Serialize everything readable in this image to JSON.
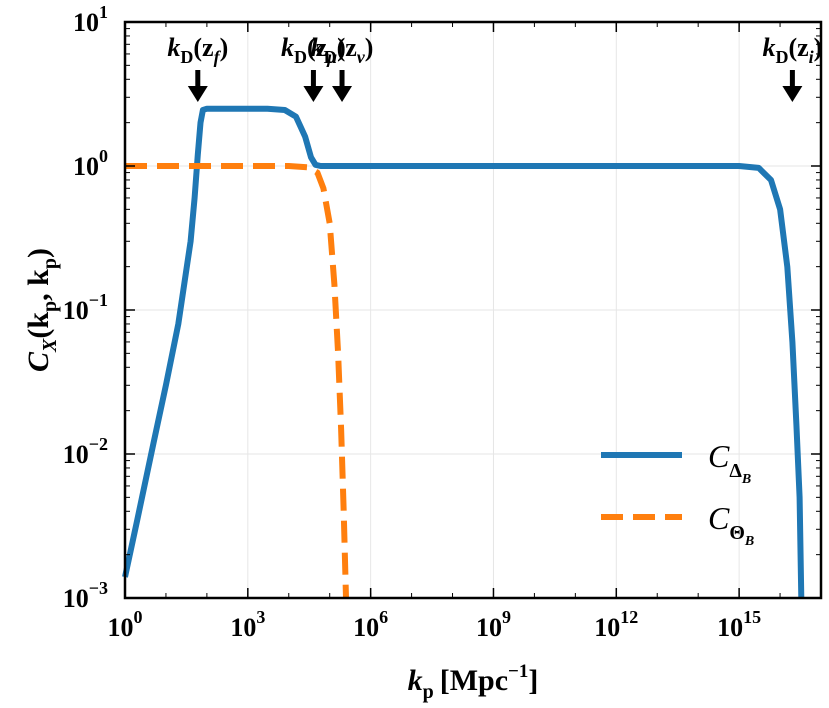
{
  "chart_data": {
    "type": "line",
    "xscale": "log",
    "yscale": "log",
    "xlim": [
      1,
      1e+17
    ],
    "ylim": [
      0.001,
      10
    ],
    "grid": true,
    "legend_position": "lower-right",
    "xlabel": {
      "main": "k",
      "sub": "p",
      "unit": "[Mpc",
      "unit_sup": "−1",
      "unit_close": "]"
    },
    "ylabel": {
      "main": "C",
      "sub": "X",
      "args": "(k",
      "args_sub1": "p",
      "comma": ", k",
      "args_sub2": "p",
      "close": ")"
    },
    "x_ticks": [
      {
        "value": 1,
        "base": "10",
        "exp": "0"
      },
      {
        "value": 1000,
        "base": "10",
        "exp": "3"
      },
      {
        "value": 1000000,
        "base": "10",
        "exp": "6"
      },
      {
        "value": 1000000000.0,
        "base": "10",
        "exp": "9"
      },
      {
        "value": 1000000000000.0,
        "base": "10",
        "exp": "12"
      },
      {
        "value": 1000000000000000.0,
        "base": "10",
        "exp": "15"
      }
    ],
    "y_ticks": [
      {
        "value": 0.001,
        "base": "10",
        "exp": "−3"
      },
      {
        "value": 0.01,
        "base": "10",
        "exp": "−2"
      },
      {
        "value": 0.1,
        "base": "10",
        "exp": "−1"
      },
      {
        "value": 1,
        "base": "10",
        "exp": "0"
      },
      {
        "value": 10,
        "base": "10",
        "exp": "1"
      }
    ],
    "annotations": [
      {
        "k": "k",
        "D": "D",
        "z": "(z",
        "sub": "f",
        "close": ")",
        "x": 60
      },
      {
        "k": "k",
        "D": "D",
        "z": "(z",
        "sub": "μ",
        "close": ")",
        "x": 40000
      },
      {
        "k": "k",
        "D": "D",
        "z": "(z",
        "sub": "ν",
        "close": ")",
        "x": 200000
      },
      {
        "k": "k",
        "D": "D",
        "z": "(z",
        "sub": "i",
        "close": ")",
        "x": 2e+16
      }
    ],
    "series": [
      {
        "name": "C_ΔB",
        "legend_main": "C",
        "legend_sub": "Δ",
        "legend_subsub": "B",
        "color": "#1f77b4",
        "style": "solid",
        "points": [
          [
            1,
            0.0014
          ],
          [
            2,
            0.0035
          ],
          [
            5,
            0.012
          ],
          [
            10,
            0.03
          ],
          [
            20,
            0.08
          ],
          [
            40,
            0.3
          ],
          [
            50,
            0.6
          ],
          [
            60,
            1.2
          ],
          [
            70,
            2.0
          ],
          [
            80,
            2.45
          ],
          [
            100,
            2.5
          ],
          [
            300,
            2.5
          ],
          [
            1000,
            2.5
          ],
          [
            3000,
            2.5
          ],
          [
            8000,
            2.45
          ],
          [
            15000,
            2.2
          ],
          [
            25000,
            1.6
          ],
          [
            35000,
            1.15
          ],
          [
            45000,
            1.02
          ],
          [
            60000,
            1.0
          ],
          [
            1000000.0,
            1.0
          ],
          [
            1000000000.0,
            1.0
          ],
          [
            1000000000000.0,
            1.0
          ],
          [
            1000000000000000.0,
            1.0
          ],
          [
            3000000000000000.0,
            0.97
          ],
          [
            6000000000000000.0,
            0.8
          ],
          [
            1e+16,
            0.5
          ],
          [
            1.5e+16,
            0.2
          ],
          [
            2e+16,
            0.06
          ],
          [
            2.5e+16,
            0.016
          ],
          [
            3e+16,
            0.005
          ],
          [
            3.3e+16,
            0.001
          ]
        ]
      },
      {
        "name": "C_ΘB",
        "legend_main": "C",
        "legend_sub": "Θ",
        "legend_subsub": "B",
        "color": "#ff7f0e",
        "style": "dashed",
        "points": [
          [
            1,
            1.0
          ],
          [
            100,
            1.0
          ],
          [
            1000,
            1.0
          ],
          [
            10000,
            1.0
          ],
          [
            30000,
            0.98
          ],
          [
            50000,
            0.9
          ],
          [
            70000,
            0.7
          ],
          [
            100000,
            0.4
          ],
          [
            130000,
            0.15
          ],
          [
            160000,
            0.05
          ],
          [
            190000,
            0.015
          ],
          [
            220000,
            0.004
          ],
          [
            250000,
            0.001
          ]
        ]
      }
    ]
  }
}
